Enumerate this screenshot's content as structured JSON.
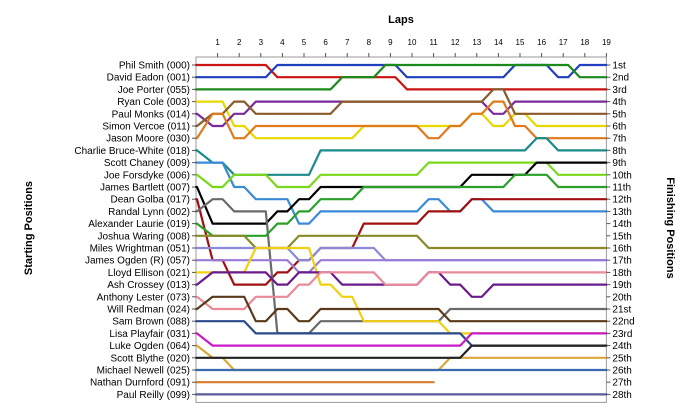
{
  "chart_data": {
    "type": "line",
    "title": "",
    "xlabel": "Laps",
    "ylabel_left": "Starting Positions",
    "ylabel_right": "Finishing Positions",
    "laps": [
      1,
      2,
      3,
      4,
      5,
      6,
      7,
      8,
      9,
      10,
      11,
      12,
      13,
      14,
      15,
      16,
      17,
      18,
      19
    ],
    "drivers": [
      "Phil Smith (000)",
      "David Eadon (001)",
      "Joe Porter (055)",
      "Ryan Cole (003)",
      "Paul Monks (014)",
      "Simon Vercoe (011)",
      "Jason Moore (030)",
      "Charlie Bruce-White (018)",
      "Scott Chaney (009)",
      "Joe Forsdyke (006)",
      "James Bartlett (007)",
      "Dean Golba (017)",
      "Randal Lynn (002)",
      "Alexander Laurie (019)",
      "Joshua Waring (008)",
      "Miles Wrightman (051)",
      "James Ogden (R) (057)",
      "Lloyd Ellison (021)",
      "Ash Crossey (013)",
      "Anthony Lester (073)",
      "Will Redman (024)",
      "Sam Brown (088)",
      "Lisa Playfair (031)",
      "Luke Ogden (064)",
      "Scott Blythe (020)",
      "Michael Newell (025)",
      "Nathan Durnford (091)",
      "Paul Reilly (099)"
    ],
    "finishing_positions": [
      "1st",
      "2nd",
      "3rd",
      "4th",
      "5th",
      "6th",
      "7th",
      "8th",
      "9th",
      "10th",
      "11th",
      "12th",
      "13th",
      "14th",
      "15th",
      "16th",
      "17th",
      "18th",
      "19th",
      "20th",
      "21st",
      "22nd",
      "23rd",
      "24th",
      "25th",
      "26th",
      "27th",
      "28th"
    ],
    "series": [
      {
        "name": "Phil Smith (000)",
        "color": "#cc1111",
        "positions": [
          1,
          1,
          1,
          1,
          2,
          2,
          2,
          2,
          2,
          2,
          3,
          3,
          3,
          3,
          3,
          3,
          3,
          3,
          3,
          3
        ]
      },
      {
        "name": "David Eadon (001)",
        "color": "#1f3fbf",
        "positions": [
          2,
          2,
          2,
          2,
          1,
          1,
          1,
          1,
          1,
          1,
          2,
          2,
          2,
          2,
          2,
          1,
          1,
          2,
          1,
          1
        ]
      },
      {
        "name": "Joe Porter (055)",
        "color": "#1a8a1a",
        "positions": [
          3,
          3,
          3,
          3,
          3,
          3,
          3,
          2,
          2,
          1,
          1,
          1,
          1,
          1,
          1,
          1,
          1,
          1,
          2,
          2
        ]
      },
      {
        "name": "Ryan Cole (003)",
        "color": "#e8d800",
        "positions": [
          4,
          4,
          6,
          7,
          7,
          7,
          7,
          7,
          6,
          6,
          6,
          6,
          6,
          5,
          6,
          5,
          6,
          6,
          6,
          6
        ]
      },
      {
        "name": "Paul Monks (014)",
        "color": "#7a2a9a",
        "positions": [
          5,
          6,
          5,
          4,
          4,
          4,
          4,
          4,
          4,
          4,
          4,
          4,
          4,
          4,
          5,
          4,
          4,
          4,
          4,
          4
        ]
      },
      {
        "name": "Simon Vercoe (011)",
        "color": "#8a5a2a",
        "positions": [
          6,
          5,
          4,
          5,
          5,
          5,
          5,
          4,
          4,
          4,
          4,
          4,
          4,
          4,
          3,
          5,
          5,
          5,
          5,
          5
        ]
      },
      {
        "name": "Jason Moore (030)",
        "color": "#e07a1a",
        "positions": [
          7,
          5,
          7,
          6,
          6,
          6,
          6,
          6,
          6,
          6,
          6,
          7,
          6,
          5,
          4,
          6,
          7,
          7,
          7,
          7
        ]
      },
      {
        "name": "Charlie Bruce-White (018)",
        "color": "#1a8a8a",
        "positions": [
          8,
          9,
          10,
          10,
          10,
          10,
          8,
          8,
          8,
          8,
          8,
          8,
          8,
          8,
          8,
          8,
          7,
          8,
          8,
          8
        ]
      },
      {
        "name": "Scott Chaney (009)",
        "color": "#3a8ad8",
        "positions": [
          9,
          9,
          11,
          12,
          12,
          14,
          13,
          13,
          13,
          13,
          13,
          12,
          13,
          12,
          13,
          13,
          13,
          13,
          13,
          13
        ]
      },
      {
        "name": "Joe Forsdyke (006)",
        "color": "#7ad81a",
        "positions": [
          10,
          11,
          10,
          10,
          11,
          11,
          10,
          10,
          10,
          10,
          10,
          9,
          9,
          9,
          9,
          9,
          9,
          10,
          10,
          10
        ]
      },
      {
        "name": "James Bartlett (007)",
        "color": "#000000",
        "positions": [
          11,
          14,
          14,
          14,
          13,
          12,
          11,
          11,
          11,
          11,
          11,
          11,
          11,
          10,
          10,
          10,
          9,
          9,
          9,
          9
        ]
      },
      {
        "name": "Dean Golba (017)",
        "color": "#a01010",
        "positions": [
          12,
          17,
          19,
          19,
          18,
          17,
          16,
          16,
          14,
          14,
          14,
          13,
          13,
          12,
          12,
          12,
          12,
          12,
          12,
          12
        ]
      },
      {
        "name": "Randal Lynn (002)",
        "color": "#6a6a6a",
        "positions": [
          13,
          12,
          13,
          13,
          23,
          23,
          22,
          22,
          22,
          22,
          22,
          22,
          21,
          21,
          21,
          21,
          21,
          21,
          21,
          21
        ]
      },
      {
        "name": "Alexander Laurie (019)",
        "color": "#2aa02a",
        "positions": [
          14,
          15,
          15,
          15,
          14,
          13,
          12,
          12,
          11,
          11,
          11,
          11,
          11,
          11,
          11,
          10,
          10,
          11,
          11,
          11
        ]
      },
      {
        "name": "Joshua Waring (008)",
        "color": "#8a8a2a",
        "positions": [
          15,
          15,
          15,
          16,
          16,
          15,
          15,
          15,
          15,
          15,
          15,
          16,
          16,
          16,
          16,
          16,
          16,
          16,
          16,
          16
        ]
      },
      {
        "name": "Miles Wrightman (051)",
        "color": "#8a8ad8",
        "positions": [
          16,
          16,
          16,
          16,
          16,
          17,
          16,
          16,
          16,
          17,
          17,
          17,
          17,
          17,
          17,
          17,
          17,
          17,
          17,
          17
        ]
      },
      {
        "name": "James Ogden (R) (057)",
        "color": "#9a7ad8",
        "positions": [
          17,
          17,
          17,
          17,
          17,
          18,
          17,
          17,
          17,
          17,
          17,
          17,
          17,
          17,
          17,
          17,
          17,
          17,
          17,
          17
        ]
      },
      {
        "name": "Lloyd Ellison (021)",
        "color": "#f0d010",
        "positions": [
          18,
          18,
          18,
          16,
          16,
          16,
          19,
          20,
          22,
          22,
          22,
          22,
          23,
          23,
          23,
          23,
          23,
          23,
          23,
          23
        ]
      },
      {
        "name": "Ash Crossey (013)",
        "color": "#6a1a8a",
        "positions": [
          19,
          18,
          18,
          18,
          19,
          18,
          18,
          19,
          19,
          19,
          19,
          18,
          19,
          20,
          19,
          19,
          19,
          19,
          19,
          19
        ]
      },
      {
        "name": "Anthony Lester (073)",
        "color": "#e88a9a",
        "positions": [
          20,
          21,
          21,
          20,
          20,
          19,
          18,
          18,
          18,
          19,
          19,
          18,
          18,
          18,
          18,
          18,
          18,
          18,
          18,
          18
        ]
      },
      {
        "name": "Will Redman (024)",
        "color": "#5a3a1a",
        "positions": [
          21,
          20,
          20,
          22,
          21,
          22,
          21,
          21,
          21,
          21,
          21,
          21,
          22,
          22,
          22,
          22,
          22,
          22,
          22,
          22
        ]
      },
      {
        "name": "Sam Brown (088)",
        "color": "#2a4a8a",
        "positions": [
          22,
          22,
          22,
          23,
          23,
          23,
          23,
          23,
          23,
          23,
          23,
          23,
          23,
          24,
          24,
          24,
          24,
          24,
          24,
          24
        ]
      },
      {
        "name": "Lisa Playfair (031)",
        "color": "#c81ac8",
        "positions": [
          23,
          24,
          24,
          24,
          24,
          24,
          24,
          24,
          24,
          24,
          24,
          24,
          24,
          23,
          23,
          23,
          23,
          23,
          23,
          23
        ]
      },
      {
        "name": "Luke Ogden (064)",
        "color": "#d8a83a",
        "positions": [
          24,
          25,
          26,
          26,
          26,
          26,
          26,
          26,
          26,
          26,
          26,
          26,
          25,
          25,
          25,
          25,
          25,
          25,
          25,
          25
        ]
      },
      {
        "name": "Scott Blythe (020)",
        "color": "#222222",
        "positions": [
          25,
          25,
          25,
          25,
          25,
          25,
          25,
          25,
          25,
          25,
          25,
          25,
          25,
          24,
          24,
          24,
          24,
          24,
          24,
          24
        ]
      },
      {
        "name": "Michael Newell (025)",
        "color": "#3a6ab0",
        "positions": [
          26,
          26,
          26,
          26,
          26,
          26,
          26,
          26,
          26,
          26,
          26,
          26,
          26,
          26,
          26,
          26,
          26,
          26,
          26,
          26
        ]
      },
      {
        "name": "Nathan Durnford (091)",
        "color": "#d87a2a",
        "positions": [
          27,
          27,
          27,
          27,
          27,
          27,
          27,
          27,
          27,
          27,
          27,
          27
        ]
      },
      {
        "name": "Paul Reilly (099)",
        "color": "#5a5a9a",
        "positions": [
          28,
          28,
          28,
          28,
          28,
          28,
          28,
          28,
          28,
          28,
          28,
          28,
          28,
          28,
          28,
          28,
          28,
          28,
          28,
          28
        ]
      }
    ]
  }
}
